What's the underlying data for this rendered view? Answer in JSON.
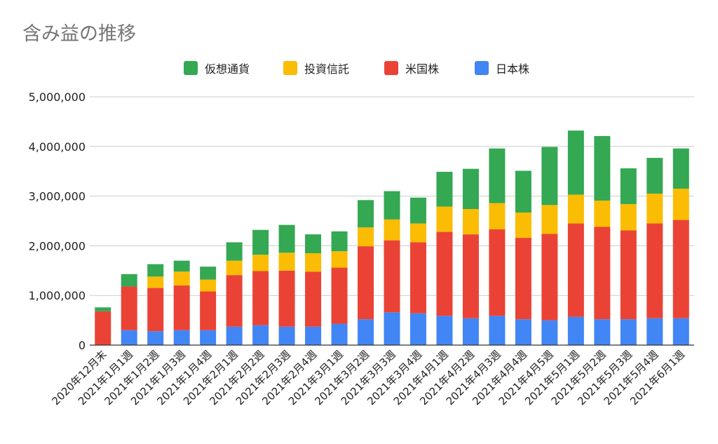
{
  "chart_data": {
    "type": "bar",
    "stacked": true,
    "title": "含み益の推移",
    "xlabel": "",
    "ylabel": "",
    "ylim": [
      0,
      5000000
    ],
    "yticks": [
      "0",
      "1,000,000",
      "2,000,000",
      "3,000,000",
      "4,000,000",
      "5,000,000"
    ],
    "grid": true,
    "legend_position": "top",
    "categories": [
      "2020年12月末",
      "2021年1月1週",
      "2021年1月2週",
      "2021年1月3週",
      "2021年1月4週",
      "2021年2月1週",
      "2021年2月2週",
      "2021年2月3週",
      "2021年2月4週",
      "2021年3月1週",
      "2021年3月2週",
      "2021年3月3週",
      "2021年3月4週",
      "2021年4月1週",
      "2021年4月2週",
      "2021年4月3週",
      "2021年4月4週",
      "2021年4月5週",
      "2021年5月1週",
      "2021年5月2週",
      "2021年5月3週",
      "2021年5月4週",
      "2021年6月1週"
    ],
    "series": [
      {
        "name": "日本株",
        "color": "#4285F4",
        "values": [
          0,
          300000,
          280000,
          300000,
          300000,
          370000,
          400000,
          370000,
          370000,
          430000,
          520000,
          660000,
          640000,
          590000,
          540000,
          590000,
          520000,
          500000,
          570000,
          520000,
          520000,
          540000,
          540000
        ]
      },
      {
        "name": "米国株",
        "color": "#EA4335",
        "values": [
          680000,
          880000,
          870000,
          900000,
          780000,
          1040000,
          1090000,
          1130000,
          1110000,
          1130000,
          1470000,
          1450000,
          1430000,
          1690000,
          1690000,
          1740000,
          1640000,
          1740000,
          1880000,
          1860000,
          1790000,
          1910000,
          1980000
        ]
      },
      {
        "name": "投資信託",
        "color": "#FBBC04",
        "values": [
          0,
          0,
          230000,
          280000,
          240000,
          290000,
          330000,
          360000,
          370000,
          330000,
          380000,
          420000,
          380000,
          510000,
          510000,
          530000,
          510000,
          580000,
          580000,
          530000,
          530000,
          600000,
          630000
        ]
      },
      {
        "name": "仮想通貨",
        "color": "#34A853",
        "values": [
          80000,
          250000,
          250000,
          220000,
          260000,
          370000,
          500000,
          560000,
          380000,
          400000,
          550000,
          570000,
          520000,
          700000,
          810000,
          1100000,
          840000,
          1170000,
          1290000,
          1300000,
          720000,
          720000,
          810000
        ]
      }
    ]
  }
}
